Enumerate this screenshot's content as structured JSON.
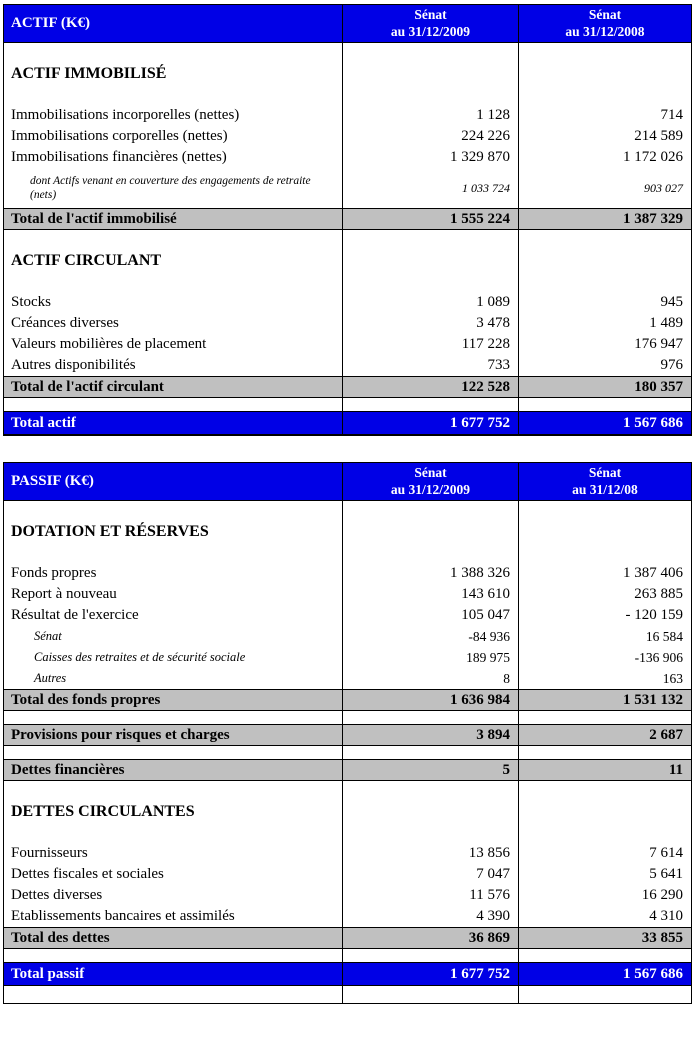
{
  "actif": {
    "header": {
      "title": "ACTIF (K€)",
      "col1": [
        "Sénat",
        "au 31/12/2009"
      ],
      "col2": [
        "Sénat",
        "au 31/12/2008"
      ]
    },
    "rows": [
      {
        "type": "section",
        "label": "ACTIF IMMOBILISÉ",
        "v1": "",
        "v2": ""
      },
      {
        "type": "item",
        "label": "Immobilisations incorporelles (nettes)",
        "v1": "1 128",
        "v2": "714"
      },
      {
        "type": "item",
        "label": "Immobilisations corporelles (nettes)",
        "v1": "224 226",
        "v2": "214 589"
      },
      {
        "type": "item",
        "label": "Immobilisations financières (nettes)",
        "v1": "1 329 870",
        "v2": "1 172 026"
      },
      {
        "type": "note",
        "label": "dont Actifs venant en couverture des engagements de retraite (nets)",
        "v1": "1 033 724",
        "v2": "903 027"
      },
      {
        "type": "total",
        "label": "Total de l'actif immobilisé",
        "v1": "1 555 224",
        "v2": "1 387 329"
      },
      {
        "type": "section",
        "label": "ACTIF CIRCULANT",
        "v1": "",
        "v2": ""
      },
      {
        "type": "item",
        "label": "Stocks",
        "v1": "1 089",
        "v2": "945"
      },
      {
        "type": "item",
        "label": "Créances diverses",
        "v1": "3 478",
        "v2": "1 489"
      },
      {
        "type": "item",
        "label": "Valeurs mobilières de placement",
        "v1": "117 228",
        "v2": "176 947"
      },
      {
        "type": "item",
        "label": "Autres disponibilités",
        "v1": "733",
        "v2": "976"
      },
      {
        "type": "total",
        "label": "Total de l'actif circulant",
        "v1": "122 528",
        "v2": "180 357"
      },
      {
        "type": "spacer",
        "label": "",
        "v1": "",
        "v2": ""
      },
      {
        "type": "grand",
        "label": "Total actif",
        "v1": "1 677 752",
        "v2": "1 567 686"
      }
    ]
  },
  "passif": {
    "header": {
      "title": "PASSIF (K€)",
      "col1": [
        "Sénat",
        "au 31/12/2009"
      ],
      "col2": [
        "Sénat",
        "au 31/12/08"
      ]
    },
    "rows": [
      {
        "type": "section",
        "label": "DOTATION ET RÉSERVES",
        "v1": "",
        "v2": ""
      },
      {
        "type": "item",
        "label": "Fonds propres",
        "v1": "1 388 326",
        "v2": "1 387 406"
      },
      {
        "type": "item",
        "label": "Report à nouveau",
        "v1": "143 610",
        "v2": "263 885"
      },
      {
        "type": "item",
        "label": "Résultat de l'exercice",
        "v1": "105 047",
        "v2": "- 120 159"
      },
      {
        "type": "sub",
        "label": "Sénat",
        "v1": "-84 936",
        "v2": "16 584"
      },
      {
        "type": "sub",
        "label": "Caisses des retraites et de sécurité sociale",
        "v1": "189 975",
        "v2": "-136 906"
      },
      {
        "type": "sub",
        "label": "Autres",
        "v1": "8",
        "v2": "163"
      },
      {
        "type": "total",
        "label": "Total des fonds propres",
        "v1": "1 636 984",
        "v2": "1 531 132"
      },
      {
        "type": "spacer",
        "label": "",
        "v1": "",
        "v2": ""
      },
      {
        "type": "total",
        "label": "Provisions pour risques et charges",
        "v1": "3 894",
        "v2": "2 687"
      },
      {
        "type": "spacer",
        "label": "",
        "v1": "",
        "v2": ""
      },
      {
        "type": "total",
        "label": "Dettes financières",
        "v1": "5",
        "v2": "11"
      },
      {
        "type": "section",
        "label": "DETTES CIRCULANTES",
        "v1": "",
        "v2": ""
      },
      {
        "type": "item",
        "label": "Fournisseurs",
        "v1": "13 856",
        "v2": "7 614"
      },
      {
        "type": "item",
        "label": "Dettes fiscales et sociales",
        "v1": "7 047",
        "v2": "5 641"
      },
      {
        "type": "item",
        "label": "Dettes diverses",
        "v1": "11 576",
        "v2": "16 290"
      },
      {
        "type": "item",
        "label": "Etablissements bancaires et assimilés",
        "v1": "4 390",
        "v2": "4 310"
      },
      {
        "type": "total",
        "label": "Total des dettes",
        "v1": "36 869",
        "v2": "33 855"
      },
      {
        "type": "spacer",
        "label": "",
        "v1": "",
        "v2": ""
      },
      {
        "type": "grand",
        "label": "Total passif",
        "v1": "1 677 752",
        "v2": "1 567 686"
      },
      {
        "type": "spacerlg",
        "label": "",
        "v1": "",
        "v2": ""
      }
    ]
  },
  "colors": {
    "header_blue": "#0000e6",
    "total_gray": "#c0c0c0"
  }
}
